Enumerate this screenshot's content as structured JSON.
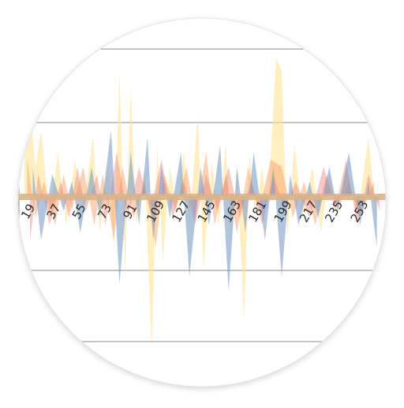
{
  "chart_data": {
    "type": "area",
    "title": "",
    "xlabel": "",
    "ylabel": "",
    "grid": true,
    "legend": "none",
    "x_tick_labels": [
      "19",
      "37",
      "55",
      "73",
      "91",
      "109",
      "127",
      "145",
      "163",
      "181",
      "199",
      "217",
      "235",
      "253"
    ],
    "x_range": [
      1,
      265
    ],
    "y_range": [
      -1,
      1
    ],
    "series": [
      {
        "color": "#ffe08a",
        "values": [
          [
            6,
            0.35
          ],
          [
            10,
            0.6
          ],
          [
            14,
            0.2
          ],
          [
            18,
            0.45
          ],
          [
            24,
            -0.15
          ],
          [
            30,
            0.3
          ],
          [
            36,
            -0.2
          ],
          [
            42,
            0.25
          ],
          [
            48,
            -0.1
          ],
          [
            55,
            0.4
          ],
          [
            60,
            -0.25
          ],
          [
            66,
            0.2
          ],
          [
            70,
            -0.35
          ],
          [
            74,
            0.85
          ],
          [
            78,
            -0.55
          ],
          [
            82,
            0.75
          ],
          [
            86,
            -0.2
          ],
          [
            92,
            0.2
          ],
          [
            97,
            -1.05
          ],
          [
            101,
            0.35
          ],
          [
            105,
            -0.45
          ],
          [
            110,
            0.2
          ],
          [
            115,
            -0.1
          ],
          [
            120,
            0.3
          ],
          [
            124,
            -0.2
          ],
          [
            130,
            0.55
          ],
          [
            134,
            -0.5
          ],
          [
            140,
            0.25
          ],
          [
            145,
            -0.2
          ],
          [
            150,
            0.35
          ],
          [
            154,
            -0.3
          ],
          [
            158,
            0.2
          ],
          [
            163,
            -0.85
          ],
          [
            167,
            0.3
          ],
          [
            171,
            -0.15
          ],
          [
            176,
            0.2
          ],
          [
            180,
            -0.1
          ],
          [
            186,
            0.95
          ],
          [
            190,
            0.85
          ],
          [
            194,
            -0.3
          ],
          [
            199,
            0.35
          ],
          [
            205,
            -0.15
          ],
          [
            212,
            0.2
          ],
          [
            218,
            -0.25
          ],
          [
            224,
            0.15
          ],
          [
            230,
            -0.1
          ],
          [
            236,
            0.2
          ],
          [
            244,
            -0.15
          ],
          [
            252,
            0.4
          ],
          [
            258,
            -0.2
          ]
        ]
      },
      {
        "color": "#f5a36b",
        "values": [
          [
            8,
            0.25
          ],
          [
            14,
            -0.15
          ],
          [
            20,
            0.1
          ],
          [
            28,
            -0.2
          ],
          [
            34,
            0.15
          ],
          [
            40,
            -0.1
          ],
          [
            48,
            0.2
          ],
          [
            56,
            -0.2
          ],
          [
            62,
            0.15
          ],
          [
            70,
            -0.3
          ],
          [
            76,
            0.2
          ],
          [
            84,
            -0.15
          ],
          [
            92,
            0.1
          ],
          [
            100,
            -0.35
          ],
          [
            106,
            0.15
          ],
          [
            114,
            -0.1
          ],
          [
            122,
            0.2
          ],
          [
            128,
            -0.15
          ],
          [
            136,
            0.3
          ],
          [
            142,
            -0.2
          ],
          [
            150,
            0.15
          ],
          [
            158,
            -0.25
          ],
          [
            166,
            0.2
          ],
          [
            174,
            -0.1
          ],
          [
            182,
            0.25
          ],
          [
            190,
            0.2
          ],
          [
            198,
            -0.15
          ],
          [
            206,
            0.1
          ],
          [
            214,
            -0.2
          ],
          [
            222,
            0.15
          ],
          [
            230,
            -0.1
          ],
          [
            238,
            0.1
          ],
          [
            246,
            -0.15
          ],
          [
            256,
            0.1
          ]
        ]
      },
      {
        "color": "#e9867f",
        "values": [
          [
            10,
            -0.3
          ],
          [
            16,
            0.15
          ],
          [
            24,
            -0.2
          ],
          [
            32,
            0.1
          ],
          [
            38,
            -0.15
          ],
          [
            44,
            0.2
          ],
          [
            50,
            -0.1
          ],
          [
            58,
            0.15
          ],
          [
            64,
            -0.2
          ],
          [
            72,
            0.3
          ],
          [
            80,
            -0.15
          ],
          [
            88,
            0.2
          ],
          [
            96,
            -0.1
          ],
          [
            104,
            0.25
          ],
          [
            112,
            -0.15
          ],
          [
            120,
            0.1
          ],
          [
            128,
            -0.2
          ],
          [
            136,
            0.15
          ],
          [
            144,
            -0.1
          ],
          [
            152,
            0.2
          ],
          [
            160,
            -0.15
          ],
          [
            168,
            0.1
          ],
          [
            176,
            -0.2
          ],
          [
            184,
            0.15
          ],
          [
            192,
            -0.1
          ],
          [
            200,
            0.1
          ],
          [
            210,
            -0.15
          ],
          [
            220,
            0.2
          ],
          [
            228,
            -0.1
          ],
          [
            236,
            0.25
          ],
          [
            244,
            -0.2
          ],
          [
            252,
            0.15
          ],
          [
            260,
            -0.1
          ]
        ]
      },
      {
        "color": "#7d9cc8",
        "values": [
          [
            12,
            0.2
          ],
          [
            18,
            -0.3
          ],
          [
            26,
            0.15
          ],
          [
            34,
            -0.1
          ],
          [
            40,
            0.1
          ],
          [
            46,
            -0.25
          ],
          [
            54,
            0.2
          ],
          [
            60,
            -0.15
          ],
          [
            68,
            0.45
          ],
          [
            74,
            -0.6
          ],
          [
            82,
            0.3
          ],
          [
            88,
            -0.2
          ],
          [
            94,
            0.4
          ],
          [
            98,
            -0.3
          ],
          [
            104,
            0.2
          ],
          [
            110,
            -0.15
          ],
          [
            118,
            0.3
          ],
          [
            124,
            -0.55
          ],
          [
            132,
            0.2
          ],
          [
            138,
            -0.2
          ],
          [
            146,
            0.35
          ],
          [
            152,
            -0.65
          ],
          [
            158,
            0.2
          ],
          [
            164,
            -0.25
          ],
          [
            170,
            0.3
          ],
          [
            178,
            -0.3
          ],
          [
            184,
            0.2
          ],
          [
            190,
            -0.55
          ],
          [
            196,
            0.15
          ],
          [
            202,
            -0.2
          ],
          [
            210,
            0.1
          ],
          [
            216,
            -0.15
          ],
          [
            224,
            0.2
          ],
          [
            230,
            -0.1
          ],
          [
            238,
            0.3
          ],
          [
            246,
            -0.2
          ],
          [
            252,
            0.1
          ],
          [
            258,
            -0.35
          ]
        ]
      }
    ]
  }
}
